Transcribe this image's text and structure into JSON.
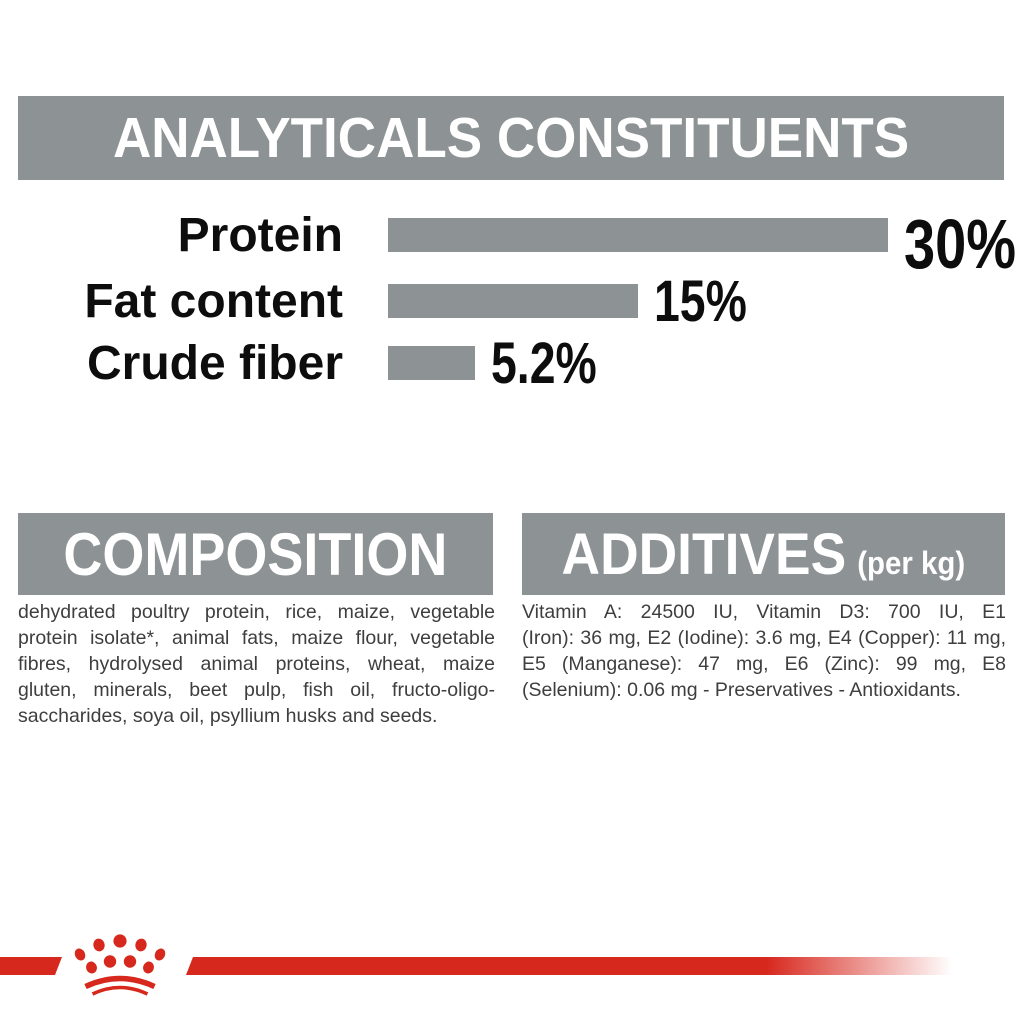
{
  "colors": {
    "brand_gray": "#8d9294",
    "brand_red": "#d7281e",
    "header_text": "#ffffff",
    "chart_text": "#0d0d0d",
    "body_text": "#3e3e3e"
  },
  "header": {
    "title": "ANALYTICALS CONSTITUENTS"
  },
  "chart_data": {
    "type": "bar",
    "orientation": "horizontal",
    "title": "ANALYTICALS CONSTITUENTS",
    "categories": [
      "Protein",
      "Fat content",
      "Crude fiber"
    ],
    "values": [
      30,
      15,
      5.2
    ],
    "value_labels": [
      "30%",
      "15%",
      "5.2%"
    ],
    "unit": "%",
    "xlim": [
      0,
      30
    ],
    "bar_color": "#8d9294",
    "grid": false,
    "legend": false
  },
  "composition": {
    "title": "COMPOSITION",
    "lines": [
      "dehydrated poultry protein, rice, maize, vegetable",
      "protein isolate*, animal fats, maize flour, vegetable",
      "fibres, hydrolysed animal proteins, wheat, maize",
      "gluten, minerals, beet pulp, fish oil, fructo-oligo-",
      "saccharides, soya oil, psyllium husks and seeds."
    ],
    "full_text": "dehydrated poultry protein, rice, maize, vegetable protein isolate*, animal fats, maize flour, vegetable fibres, hydrolysed animal proteins, wheat, maize gluten, minerals, beet pulp, fish oil, fructo-oligo-saccharides, soya oil, psyllium husks and seeds."
  },
  "additives": {
    "title": "ADDITIVES",
    "unit_note": "(per kg)",
    "lines": [
      "Vitamin A: 24500 IU, Vitamin D3: 700 IU, E1",
      "(Iron): 36 mg, E2 (Iodine): 3.6 mg, E4 (Copper): 11 mg,",
      "E5 (Manganese): 47 mg, E6 (Zinc): 99 mg, E8",
      "(Selenium): 0.06 mg - Preservatives - Antioxidants."
    ],
    "full_text": "Vitamin A: 24500 IU, Vitamin D3: 700 IU, E1 (Iron): 36 mg, E2 (Iodine): 3.6 mg, E4 (Copper): 11 mg, E5 (Manganese): 47 mg, E6 (Zinc): 99 mg, E8 (Selenium): 0.06 mg - Preservatives - Antioxidants."
  },
  "footer": {
    "logo": "royal-canin-crown"
  }
}
